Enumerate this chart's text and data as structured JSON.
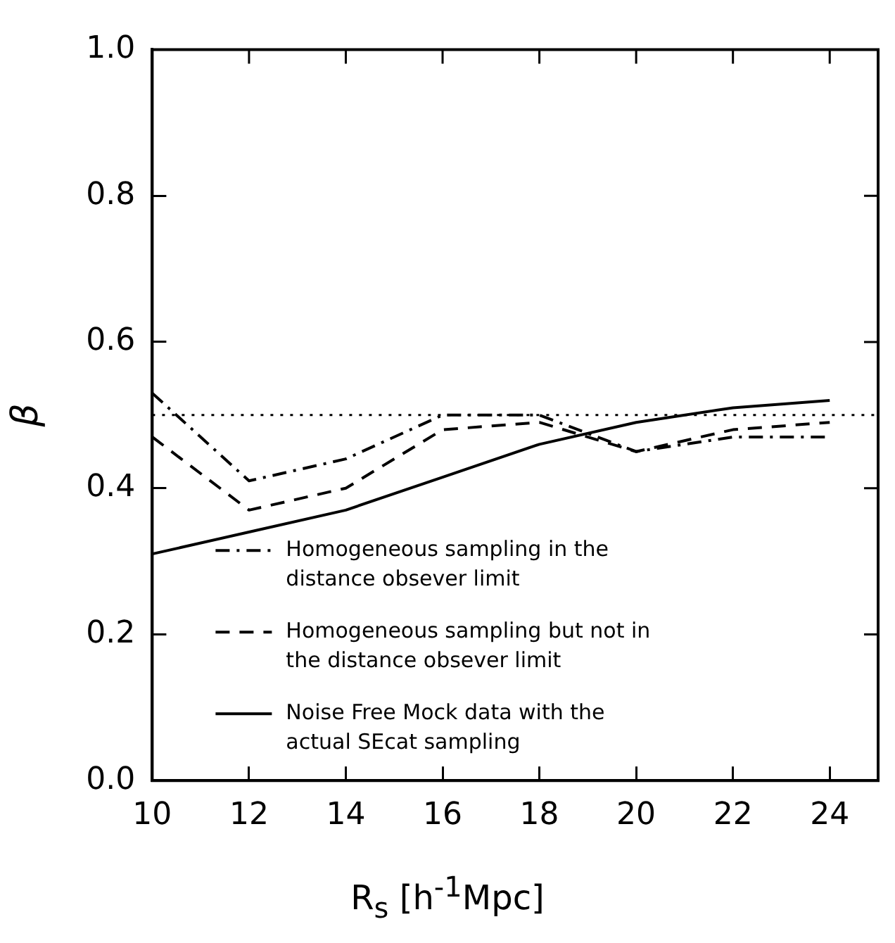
{
  "chart_data": {
    "type": "line",
    "xlabel": "R$_{s}$ [h$^{-1}$Mpc]",
    "ylabel": "β",
    "x": [
      10,
      12,
      14,
      16,
      18,
      20,
      22,
      24
    ],
    "series": [
      {
        "name": "Homogeneous sampling in the distance obsever limit",
        "color": "#000000",
        "line_style": "dashdot",
        "values": [
          0.53,
          0.41,
          0.44,
          0.5,
          0.5,
          0.45,
          0.47,
          0.47
        ]
      },
      {
        "name": "Homogeneous sampling but not in the distance obsever limit",
        "color": "#000000",
        "line_style": "dashed",
        "values": [
          0.47,
          0.37,
          0.4,
          0.48,
          0.49,
          0.45,
          0.48,
          0.49
        ]
      },
      {
        "name": "Noise Free Mock data with the actual SEcat sampling",
        "color": "#000000",
        "line_style": "solid",
        "values": [
          0.31,
          0.34,
          0.37,
          0.415,
          0.46,
          0.49,
          0.51,
          0.52
        ]
      }
    ],
    "xlim": [
      10,
      25
    ],
    "xticks": [
      10,
      12,
      14,
      16,
      18,
      20,
      22,
      24
    ],
    "ylim": [
      0,
      1.0
    ],
    "yticks": [
      {
        "value": 0,
        "label": "0.0"
      },
      0.2,
      0.4,
      0.6,
      0.8,
      {
        "value": 1.0,
        "label": "1.0"
      }
    ],
    "ref_lines": [
      {
        "axis": "y",
        "value": 0.5,
        "color": "#000000",
        "line_style": "dotted"
      }
    ],
    "legend": "bottom",
    "grid": false,
    "marker": "none"
  }
}
